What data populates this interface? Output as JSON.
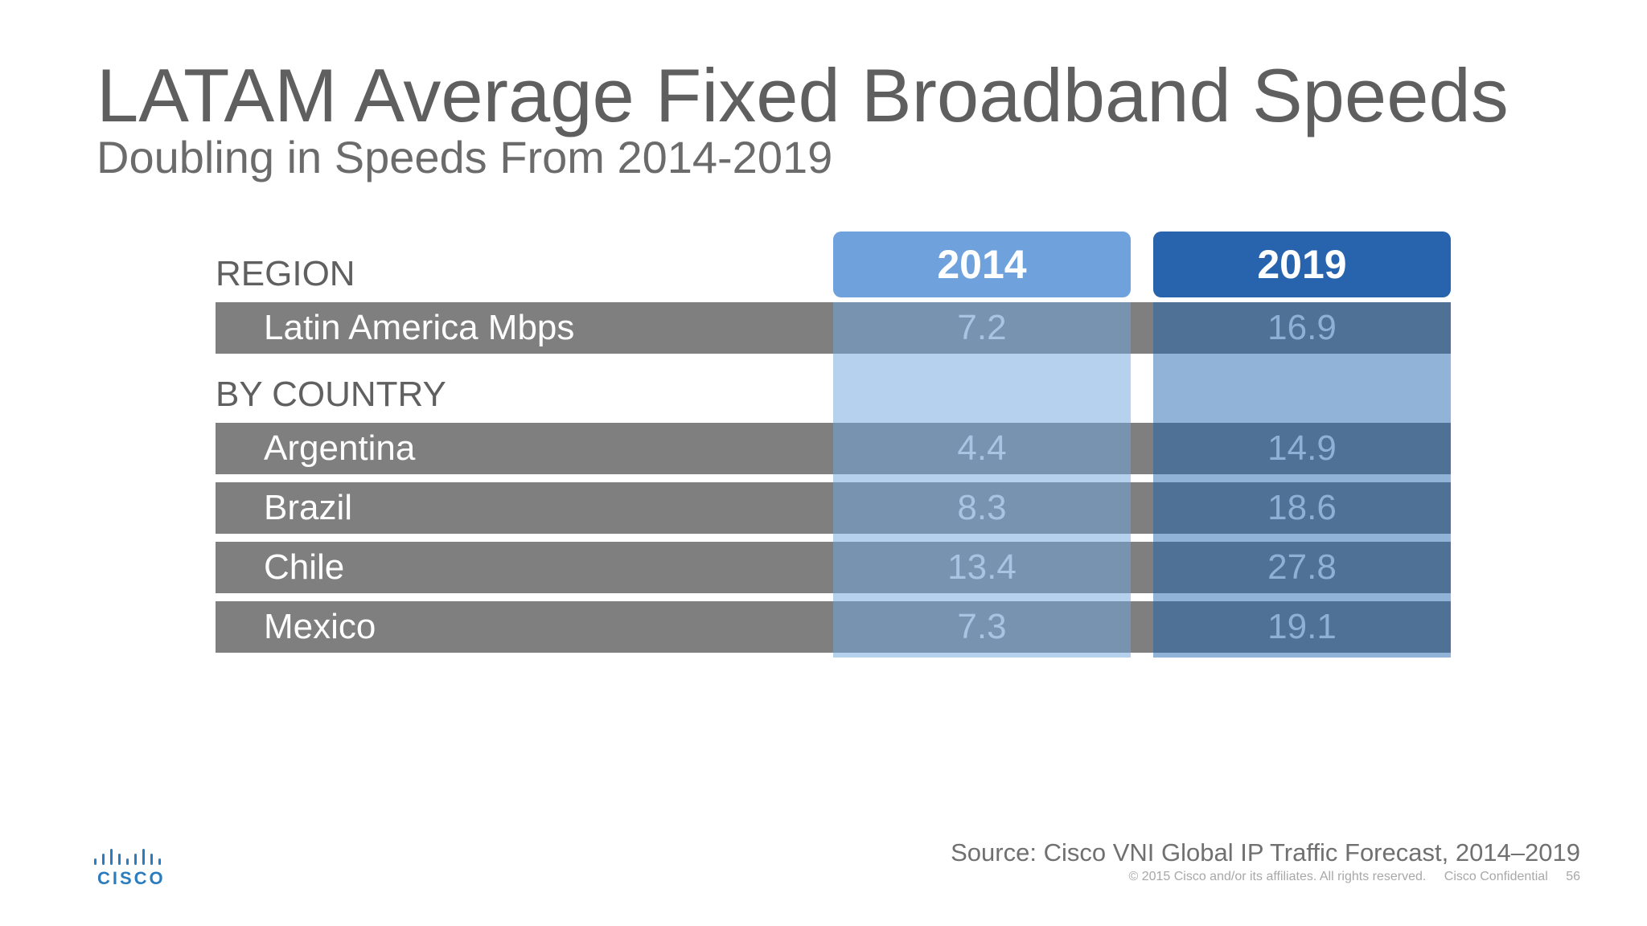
{
  "slide": {
    "title": "LATAM Average Fixed Broadband Speeds",
    "subtitle": "Doubling in Speeds From 2014-2019",
    "source": "Source: Cisco VNI Global IP Traffic Forecast, 2014–2019",
    "footer_copyright": "© 2015  Cisco and/or its affiliates. All rights reserved.",
    "footer_confidential": "Cisco Confidential",
    "page_number": "56",
    "logo_text": "CISCO",
    "colors": {
      "header_2014": "#6fa2dc",
      "header_2019": "#2863ae",
      "row_label": "#7f7f7f",
      "col_2014": "#7893b0",
      "col_2019": "#4f7196"
    }
  },
  "chart_data": {
    "type": "table",
    "columns": [
      "2014",
      "2019"
    ],
    "sections": [
      {
        "label": "REGION",
        "rows": [
          {
            "label": "Latin America Mbps",
            "values": [
              "7.2",
              "16.9"
            ]
          }
        ]
      },
      {
        "label": "BY COUNTRY",
        "rows": [
          {
            "label": "Argentina",
            "values": [
              "4.4",
              "14.9"
            ]
          },
          {
            "label": "Brazil",
            "values": [
              "8.3",
              "18.6"
            ]
          },
          {
            "label": "Chile",
            "values": [
              "13.4",
              "27.8"
            ]
          },
          {
            "label": "Mexico",
            "values": [
              "7.3",
              "19.1"
            ]
          }
        ]
      }
    ]
  }
}
